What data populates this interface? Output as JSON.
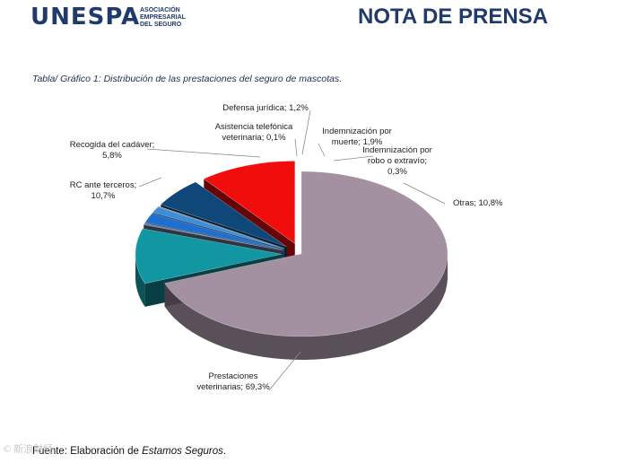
{
  "header": {
    "logo": {
      "wordmark": "UNESPA",
      "subtitle": [
        "ASOCIACIÓN",
        "EMPRESARIAL",
        "DEL SEGURO"
      ]
    },
    "title": "NOTA DE PRENSA"
  },
  "caption": "Tabla/ Gráfico 1: Distribución de las prestaciones del seguro de mascotas.",
  "chart_data": {
    "type": "pie",
    "title": "Distribución de las prestaciones del seguro de mascotas",
    "unit": "%",
    "slices": [
      {
        "name": "Prestaciones veterinarias",
        "value": 69.3,
        "label": [
          "Prestaciones",
          "veterinarias; 69,3%"
        ],
        "color": "#a391a2"
      },
      {
        "name": "Otras",
        "value": 10.8,
        "label": [
          "Otras; 10,8%"
        ],
        "color": "#1297a2"
      },
      {
        "name": "Indemnización por robo o extravío",
        "value": 0.3,
        "label": [
          "Indemnización por",
          "robo o extravío;",
          "0,3%"
        ],
        "color": "#6a7fa0"
      },
      {
        "name": "Indemnización por muerte",
        "value": 1.9,
        "label": [
          "Indemnización por",
          "muerte; 1,9%"
        ],
        "color": "#1f6fd0"
      },
      {
        "name": "Defensa jurídica",
        "value": 1.2,
        "label": [
          "Defensa jurídica; 1,2%"
        ],
        "color": "#3d8ed9"
      },
      {
        "name": "Asistencia telefónica veterinaria",
        "value": 0.1,
        "label": [
          "Asistencia telefónica",
          "veterinaria; 0,1%"
        ],
        "color": "#8fb0d8"
      },
      {
        "name": "Recogida del cadáver",
        "value": 5.8,
        "label": [
          "Recogida del cadáver;",
          "5,8%"
        ],
        "color": "#0e4778"
      },
      {
        "name": "RC ante terceros",
        "value": 10.7,
        "label": [
          "RC ante terceros;",
          "10,7%"
        ],
        "color": "#f20d0d"
      }
    ]
  },
  "footer": {
    "prefix": "Fuente: Elaboración de ",
    "source": "Estamos Seguros",
    "suffix": "."
  },
  "watermark": "© 新浪财经"
}
